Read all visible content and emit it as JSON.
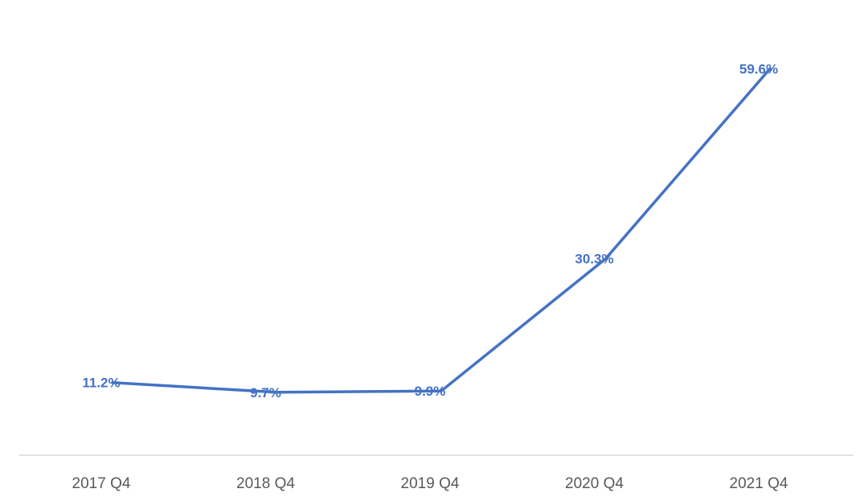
{
  "chart_data": {
    "type": "line",
    "title": "",
    "xlabel": "",
    "ylabel": "",
    "categories": [
      "2017 Q4",
      "2018 Q4",
      "2019 Q4",
      "2020 Q4",
      "2021 Q4"
    ],
    "series": [
      {
        "values": [
          11.2,
          9.7,
          9.9,
          30.3,
          59.6
        ],
        "data_labels": [
          "11.2%",
          "9.7%",
          "9.9%",
          "30.3%",
          "59.6%"
        ],
        "color": "#4472C4"
      }
    ],
    "ylim": [
      0,
      65
    ],
    "grid": false,
    "legend": "none",
    "axis_line_color": "#D9D9D9",
    "tick_label_color": "#595959"
  }
}
